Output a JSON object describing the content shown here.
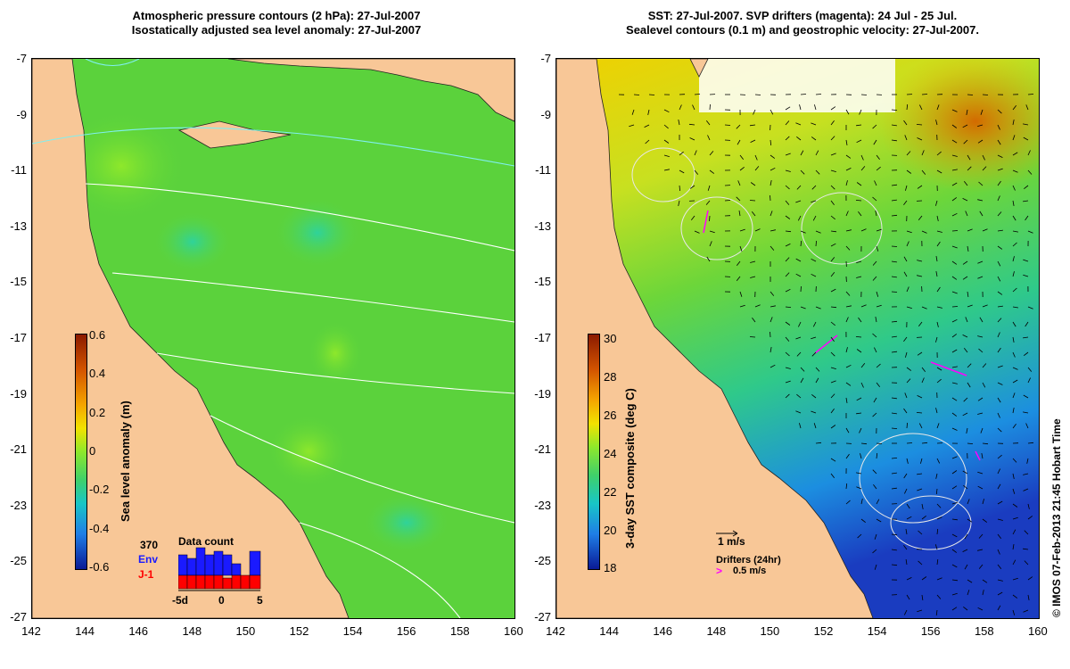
{
  "left_panel": {
    "title_line1": "Atmospheric pressure contours (2 hPa): 27-Jul-2007",
    "title_line2": "Isostatically adjusted sea level anomaly: 27-Jul-2007",
    "colorbar_label": "Sea level anomaly (m)",
    "colorbar_ticks": [
      "0.6",
      "0.4",
      "0.2",
      "0",
      "-0.2",
      "-0.4",
      "-0.6"
    ],
    "data_count": {
      "title": "Data count",
      "total": "370",
      "env_label": "Env",
      "j1_label": "J-1",
      "x_ticks": [
        "-5d",
        "0",
        "5"
      ],
      "env_colour": "#1a1aff",
      "j1_colour": "#ff0000"
    }
  },
  "right_panel": {
    "title_line1": "SST: 27-Jul-2007. SVP drifters (magenta): 24 Jul - 25 Jul.",
    "title_line2": "Sealevel contours (0.1 m) and geostrophic velocity: 27-Jul-2007.",
    "colorbar_label": "3-day SST composite (deg C)",
    "colorbar_ticks": [
      "30",
      "28",
      "26",
      "24",
      "22",
      "20",
      "18"
    ],
    "velocity_key": "1 m/s",
    "drifters_label": "Drifters (24hr)",
    "drifters_speed": "0.5 m/s",
    "drifter_colour": "#ff00ff"
  },
  "axes": {
    "y_ticks": [
      "-7",
      "-9",
      "-11",
      "-13",
      "-15",
      "-17",
      "-19",
      "-21",
      "-23",
      "-25",
      "-27"
    ],
    "x_ticks": [
      "142",
      "144",
      "146",
      "148",
      "150",
      "152",
      "154",
      "156",
      "158",
      "160"
    ]
  },
  "stamp": "© IMOS 07-Feb-2013 21:45 Hobart Time",
  "colors": {
    "land": "#f8c797",
    "ocean_mid": "#5fd63a"
  }
}
